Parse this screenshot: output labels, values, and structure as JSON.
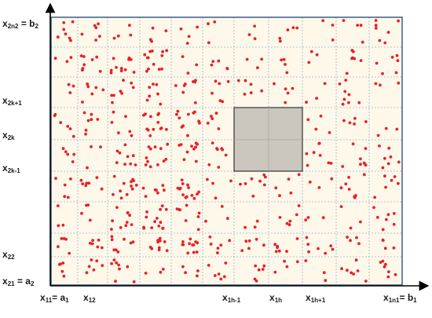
{
  "diagram": {
    "colors": {
      "cell_fill": "#fdf8ea",
      "grid_line": "#9ab3c8",
      "frame": "#3a5f8a",
      "axis": "#000000",
      "dot": "#e8202a",
      "highlight_fill": "#cbc7bf",
      "highlight_border": "#333333"
    },
    "y_axis_labels": [
      {
        "main": "x",
        "sub": "2n2",
        "suffix_main": " = b",
        "suffix_sub": "2"
      },
      {
        "main": "x",
        "sub": "2k+1",
        "suffix_main": "",
        "suffix_sub": ""
      },
      {
        "main": "x",
        "sub": "2k",
        "suffix_main": "",
        "suffix_sub": ""
      },
      {
        "main": "x",
        "sub": "2k-1",
        "suffix_main": "",
        "suffix_sub": ""
      },
      {
        "main": "x",
        "sub": "22",
        "suffix_main": "",
        "suffix_sub": ""
      },
      {
        "main": "x",
        "sub": "21",
        "suffix_main": " = a",
        "suffix_sub": "2"
      }
    ],
    "x_axis_labels": [
      {
        "main": "x",
        "sub": "11",
        "suffix_main": "= a",
        "suffix_sub": "1"
      },
      {
        "main": "x",
        "sub": "12",
        "suffix_main": "",
        "suffix_sub": ""
      },
      {
        "main": "x",
        "sub": "1h-1",
        "suffix_main": "",
        "suffix_sub": ""
      },
      {
        "main": "x",
        "sub": "1h",
        "suffix_main": "",
        "suffix_sub": ""
      },
      {
        "main": "x",
        "sub": "1h+1",
        "suffix_main": "",
        "suffix_sub": ""
      },
      {
        "main": "x",
        "sub": "1n1",
        "suffix_main": "= b",
        "suffix_sub": "1"
      }
    ]
  }
}
